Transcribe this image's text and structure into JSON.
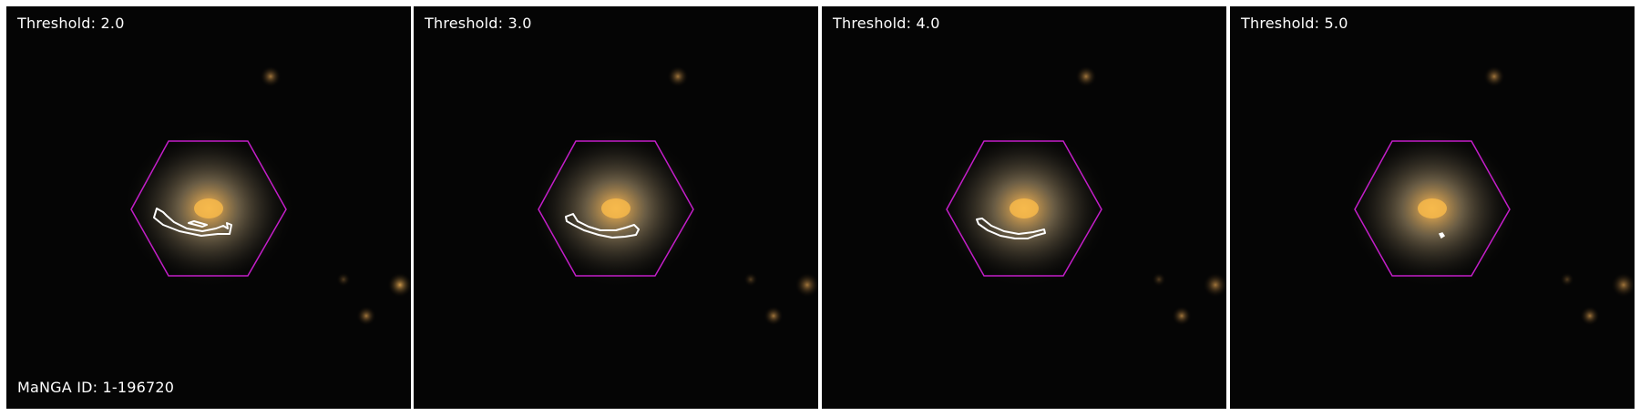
{
  "figure": {
    "manga_id_text": "MaNGA ID: 1-196720",
    "panels": [
      {
        "threshold_label": "Threshold: 2.0",
        "contour_label": "region-contour-threshold-2"
      },
      {
        "threshold_label": "Threshold: 3.0",
        "contour_label": "region-contour-threshold-3"
      },
      {
        "threshold_label": "Threshold: 4.0",
        "contour_label": "region-contour-threshold-4"
      },
      {
        "threshold_label": "Threshold: 5.0",
        "contour_label": "region-contour-threshold-5"
      }
    ],
    "colors": {
      "background": "#000000",
      "hexagon_outline": "#c31ec8",
      "contour": "#ffffff",
      "galaxy_core": "#f2b24a",
      "galaxy_halo": "#8a7a5a"
    }
  }
}
